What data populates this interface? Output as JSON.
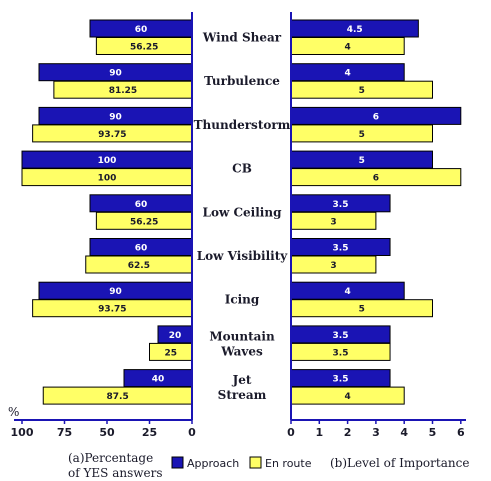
{
  "chart_data": {
    "type": "bar",
    "colors": {
      "approach": "#1a14b4",
      "en_route": "#ffff66"
    },
    "categories": [
      [
        "Wind Shear"
      ],
      [
        "Turbulence"
      ],
      [
        "Thunderstorm"
      ],
      [
        "CB"
      ],
      [
        "Low Ceiling"
      ],
      [
        "Low Visibility"
      ],
      [
        "Icing"
      ],
      [
        "Mountain",
        "Waves"
      ],
      [
        "Jet",
        "Stream"
      ]
    ],
    "left_panel": {
      "unit_label": "%",
      "xlim": [
        100,
        0
      ],
      "ticks": [
        "100",
        "75",
        "50",
        "25",
        "0"
      ],
      "caption": [
        "(a)Percentage",
        "of YES answers"
      ],
      "approach": [
        60,
        90,
        90,
        100,
        60,
        60,
        90,
        20,
        40
      ],
      "approach_labels": [
        "60",
        "90",
        "90",
        "100",
        "60",
        "60",
        "90",
        "20",
        "40"
      ],
      "en_route": [
        56.25,
        81.25,
        93.75,
        100,
        56.25,
        62.5,
        93.75,
        25,
        87.5
      ],
      "en_route_labels": [
        "56.25",
        "81.25",
        "93.75",
        "100",
        "56.25",
        "62.5",
        "93.75",
        "25",
        "87.5"
      ]
    },
    "right_panel": {
      "xlim": [
        0,
        6
      ],
      "ticks": [
        "0",
        "1",
        "2",
        "3",
        "4",
        "5",
        "6"
      ],
      "caption": "(b)Level of Importance",
      "approach": [
        4.5,
        4,
        6,
        5,
        3.5,
        3.5,
        4,
        3.5,
        3.5
      ],
      "approach_labels": [
        "4.5",
        "4",
        "6",
        "5",
        "3.5",
        "3.5",
        "4",
        "3.5",
        "3.5"
      ],
      "en_route": [
        4,
        5,
        5,
        6,
        3,
        3,
        5,
        3.5,
        4
      ],
      "en_route_labels": [
        "4",
        "5",
        "5",
        "6",
        "3",
        "3",
        "5",
        "3.5",
        "4"
      ]
    },
    "legend": [
      "Approach",
      "En route"
    ]
  }
}
